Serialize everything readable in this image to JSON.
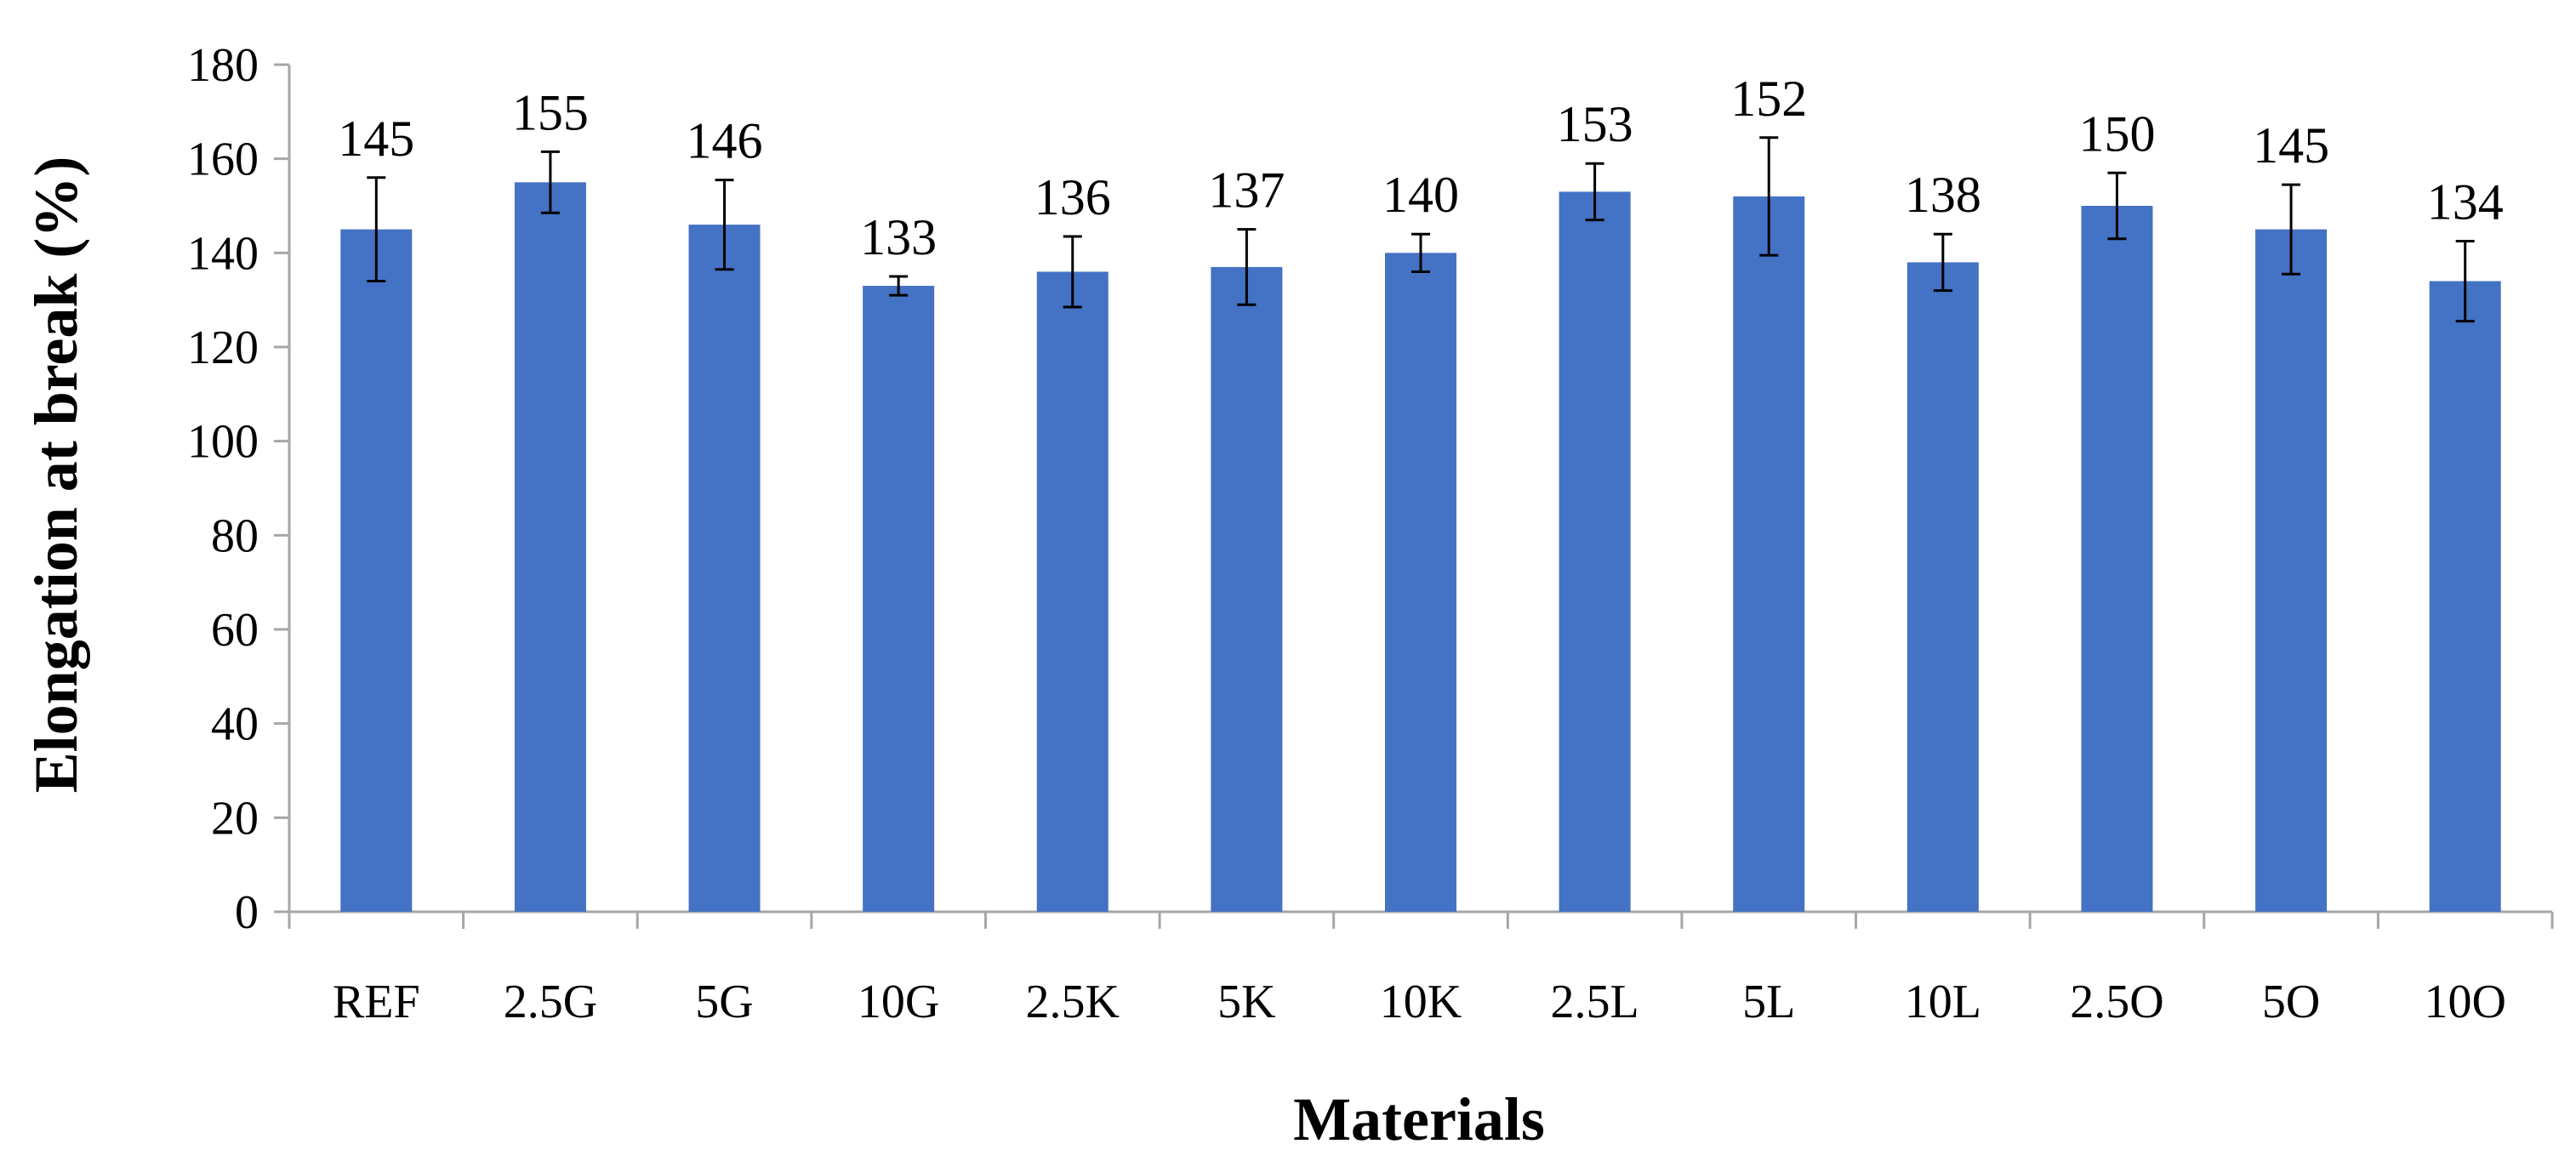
{
  "chart_data": {
    "type": "bar",
    "title": "",
    "xlabel": "Materials",
    "ylabel": "Elongation at break (%)",
    "ylim": [
      0,
      180
    ],
    "yticks": [
      0,
      20,
      40,
      60,
      80,
      100,
      120,
      140,
      160,
      180
    ],
    "ytick_labels": [
      "0",
      "20",
      "40",
      "60",
      "80",
      "100",
      "120",
      "140",
      "160",
      "180"
    ],
    "grid": false,
    "legend": "none",
    "categories": [
      "REF",
      "2.5G",
      "5G",
      "10G",
      "2.5K",
      "5K",
      "10K",
      "2.5L",
      "5L",
      "10L",
      "2.5O",
      "5O",
      "10O"
    ],
    "values": [
      145,
      155,
      146,
      133,
      136,
      137,
      140,
      153,
      152,
      138,
      150,
      145,
      134
    ],
    "value_labels": [
      "145",
      "155",
      "146",
      "133",
      "136",
      "137",
      "140",
      "153",
      "152",
      "138",
      "150",
      "145",
      "134"
    ],
    "errors": [
      11,
      6.5,
      9.5,
      2,
      7.5,
      8,
      4,
      6,
      12.5,
      6,
      7,
      9.5,
      8.5
    ],
    "bar_color": "#4472C4",
    "axis_color": "#A6A6A6"
  }
}
